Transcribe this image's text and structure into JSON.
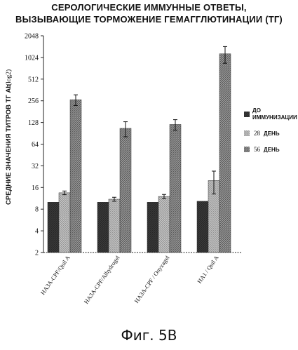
{
  "chart_data": {
    "type": "bar",
    "title": "СЕРОЛОГИЧЕСКИЕ ИММУННЫЕ ОТВЕТЫ,",
    "subtitle": "ВЫЗЫВАЮЩИЕ ТОРМОЖЕНИЕ ГЕМАГГЛЮТИНАЦИИ (ТГ)",
    "ylabel": "СРЕДНИЕ ЗНАЧЕНИЯ ТИТРОВ ТГ Ab",
    "ylabel_unit": "(log2)",
    "xlabel": "",
    "yscale": "log2",
    "ylim": [
      2,
      2048
    ],
    "yticks": [
      "2",
      "4",
      "8",
      "16",
      "32",
      "64",
      "128",
      "256",
      "512",
      "1024",
      "2048"
    ],
    "categories": [
      "HA3A-CPF/Quil A",
      "HA3A-CPF/Alhydrogel",
      "HA3A-CPF / Onyxagel",
      "HA1 / Quil A"
    ],
    "series": [
      {
        "name": "ДО ИММУНИЗАЦИИ",
        "color": "#3a3a3a",
        "values": [
          10,
          10,
          10,
          10.3
        ],
        "errors": [
          0,
          0,
          0,
          0
        ]
      },
      {
        "name": "28 ДЕНЬ",
        "color": "#b5b5b5",
        "values": [
          13.5,
          11,
          12,
          20
        ],
        "errors": [
          0.8,
          0.7,
          0.8,
          7
        ]
      },
      {
        "name": "56 ДЕНЬ",
        "color": "#858585",
        "values": [
          265,
          106,
          120,
          1150
        ],
        "errors": [
          45,
          25,
          20,
          300
        ]
      }
    ],
    "legend_position": "right",
    "grid": false
  },
  "legend": {
    "items": [
      {
        "line1": "ДО",
        "line2": "ИММУНИЗАЦИИ"
      },
      {
        "number": "28",
        "word": "ДЕНЬ"
      },
      {
        "number": "56",
        "word": "ДЕНЬ"
      }
    ]
  },
  "caption": "Фиг. 5B"
}
